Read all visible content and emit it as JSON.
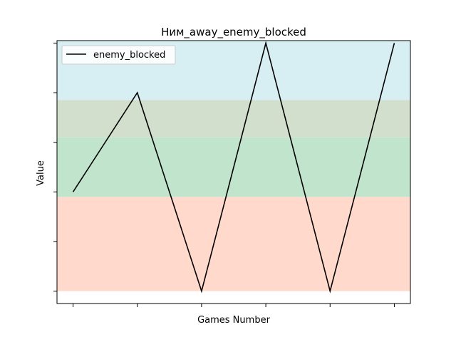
{
  "chart_data": {
    "type": "line",
    "title": "Ним_away_enemy_blocked",
    "xlabel": "Games Number",
    "ylabel": "Value",
    "x": [
      0,
      1,
      2,
      3,
      4,
      5
    ],
    "xlim": [
      -0.25,
      5.25
    ],
    "ylim": [
      -0.25,
      5.05
    ],
    "y_ticks": [
      0,
      1,
      2,
      3,
      4,
      5
    ],
    "x_tick_labels_visible": false,
    "y_tick_labels_visible": false,
    "grid": false,
    "legend": {
      "position": "top-left",
      "entries": [
        "enemy_blocked"
      ]
    },
    "series": [
      {
        "name": "enemy_blocked",
        "color": "#000000",
        "values": [
          2,
          4,
          0,
          5,
          0,
          5
        ]
      }
    ],
    "bands": [
      {
        "from": 0,
        "to": 1.9,
        "color": "#ffdacc"
      },
      {
        "from": 1.9,
        "to": 3.1,
        "color": "#c0e5cc"
      },
      {
        "from": 3.1,
        "to": 3.85,
        "color": "#d3dfcd"
      },
      {
        "from": 3.85,
        "to": 5.05,
        "color": "#d7eef2"
      }
    ]
  }
}
